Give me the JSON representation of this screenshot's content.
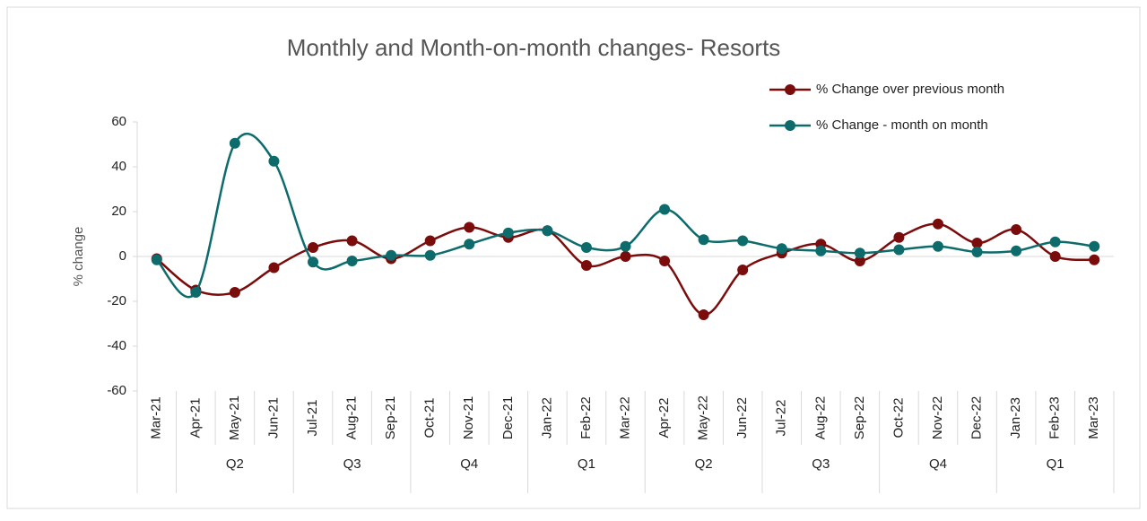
{
  "chart_data": {
    "type": "line",
    "title": "Monthly and Month-on-month changes- Resorts",
    "y_label": "% change",
    "categories": [
      "Mar-21",
      "Apr-21",
      "May-21",
      "Jun-21",
      "Jul-21",
      "Aug-21",
      "Sep-21",
      "Oct-21",
      "Nov-21",
      "Dec-21",
      "Jan-22",
      "Feb-22",
      "Mar-22",
      "Apr-22",
      "May-22",
      "Jun-22",
      "Jul-22",
      "Aug-22",
      "Sep-22",
      "Oct-22",
      "Nov-22",
      "Dec-22",
      "Jan-23",
      "Feb-23",
      "Mar-23"
    ],
    "category_groups": [
      null,
      "Q2",
      "Q2",
      "Q2",
      "Q3",
      "Q3",
      "Q3",
      "Q4",
      "Q4",
      "Q4",
      "Q1",
      "Q1",
      "Q1",
      "Q2",
      "Q2",
      "Q2",
      "Q3",
      "Q3",
      "Q3",
      "Q4",
      "Q4",
      "Q4",
      "Q1",
      "Q1",
      "Q1"
    ],
    "series": [
      {
        "name": "% Change over previous month",
        "color": "#7b0c0c",
        "values": [
          -1,
          -15,
          -16,
          -5,
          4,
          7,
          -1,
          7,
          13,
          8.5,
          11.5,
          -4,
          0,
          -2,
          -26,
          -6,
          1.5,
          5.5,
          -2,
          8.5,
          14.5,
          6,
          12,
          0,
          -1.5
        ]
      },
      {
        "name": "% Change - month on month",
        "color": "#0e6b6b",
        "values": [
          -1.5,
          -16,
          50.5,
          42.5,
          -2.5,
          -2,
          0.5,
          0.5,
          5.5,
          10.5,
          11.5,
          4,
          4.5,
          21,
          7.5,
          7,
          3.5,
          2.5,
          1.5,
          3,
          4.5,
          2,
          2.5,
          6.5,
          4.5
        ]
      }
    ],
    "ylim": [
      -60,
      60
    ],
    "yticks": [
      -60,
      -40,
      -20,
      0,
      20,
      40,
      60
    ],
    "smooth": true,
    "legend": "top-right"
  }
}
